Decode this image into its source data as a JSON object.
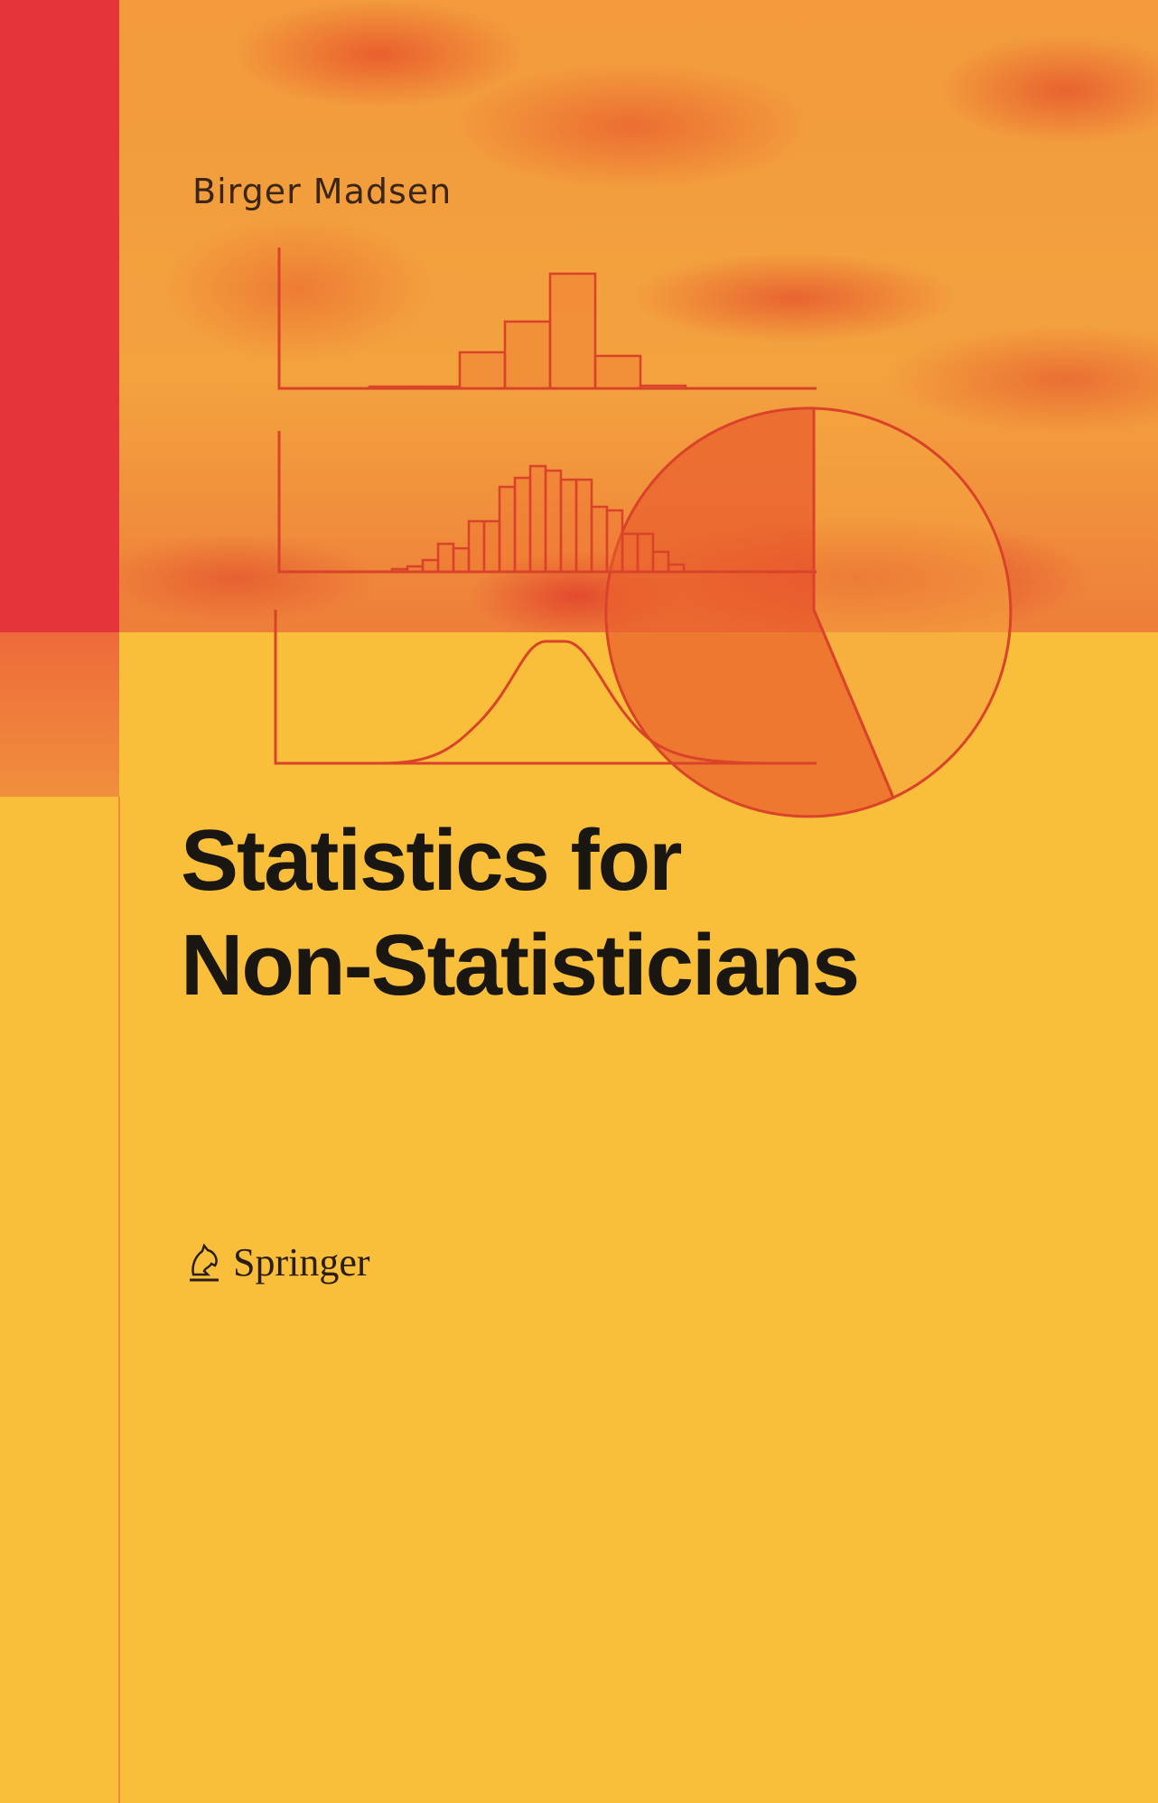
{
  "cover": {
    "author": "Birger Madsen",
    "title_line1": "Statistics for",
    "title_line2": "Non-Statisticians",
    "publisher": "Springer",
    "publisher_logo_icon": "knight-horse-icon"
  },
  "colors": {
    "background": "#F9BE3A",
    "accent_red": "#E3353A",
    "line": "#D8432A",
    "title_text": "#1a1612"
  }
}
